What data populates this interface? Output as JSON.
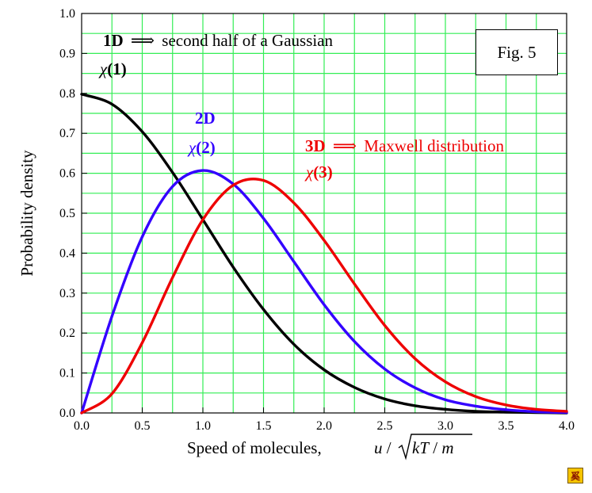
{
  "chart_data": {
    "type": "line",
    "xlabel": "Speed of molecules,",
    "xlim": [
      0,
      4
    ],
    "ylim": [
      0,
      1
    ],
    "grid": true,
    "xticks": [
      "0.0",
      "0.5",
      "1.0",
      "1.5",
      "2.0",
      "2.5",
      "3.0",
      "3.5",
      "4.0"
    ],
    "yticks": [
      "0.0",
      "0.1",
      "0.2",
      "0.3",
      "0.4",
      "0.5",
      "0.6",
      "0.7",
      "0.8",
      "0.9",
      "1.0"
    ],
    "series": [
      {
        "name": "χ(1)",
        "color": "#000000",
        "x": [
          0,
          0.25,
          0.5,
          0.75,
          1.0,
          1.25,
          1.5,
          1.75,
          2.0,
          2.25,
          2.5,
          2.75,
          3.0,
          3.25,
          3.5,
          3.75,
          4.0
        ],
        "y": [
          0.798,
          0.773,
          0.704,
          0.602,
          0.484,
          0.365,
          0.259,
          0.172,
          0.108,
          0.064,
          0.035,
          0.018,
          0.009,
          0.004,
          0.002,
          0.001,
          0.0
        ]
      },
      {
        "name": "χ(2)",
        "color": "#3300ff",
        "x": [
          0,
          0.25,
          0.5,
          0.75,
          1.0,
          1.25,
          1.5,
          1.75,
          2.0,
          2.25,
          2.5,
          2.75,
          3.0,
          3.25,
          3.5,
          3.75,
          4.0
        ],
        "y": [
          0.0,
          0.242,
          0.441,
          0.567,
          0.607,
          0.573,
          0.487,
          0.379,
          0.271,
          0.179,
          0.11,
          0.063,
          0.033,
          0.017,
          0.008,
          0.003,
          0.001
        ]
      },
      {
        "name": "χ(3)",
        "color": "#ee0000",
        "x": [
          0,
          0.25,
          0.5,
          0.75,
          1.0,
          1.25,
          1.5,
          1.75,
          2.0,
          2.25,
          2.5,
          2.75,
          3.0,
          3.25,
          3.5,
          3.75,
          4.0
        ],
        "y": [
          0.0,
          0.048,
          0.176,
          0.339,
          0.484,
          0.57,
          0.582,
          0.526,
          0.432,
          0.323,
          0.219,
          0.136,
          0.078,
          0.041,
          0.02,
          0.009,
          0.004
        ]
      }
    ]
  },
  "annotations": {
    "a1_prefix": "1D",
    "a1_arrow": "⟹",
    "a1_text": "second half of a Gaussian",
    "a1_chi": "χ",
    "a1_chi_suffix": "(1)",
    "a2_prefix": "2D",
    "a2_chi": "χ",
    "a2_chi_suffix": "(2)",
    "a3_prefix": "3D",
    "a3_arrow": "⟹",
    "a3_text": "Maxwell distribution",
    "a3_chi": "χ",
    "a3_chi_suffix": "(3)"
  },
  "ylabel": "Probability density",
  "xlabel_formula": {
    "u": "u",
    "slash1": " / ",
    "kt": "kT",
    "slash2": " / ",
    "m": "m"
  },
  "fig_label": "Fig. 5",
  "logo_glyph": "奚",
  "colors": {
    "grid": "#33ee55",
    "black": "#000000",
    "blue": "#3300ff",
    "red": "#ee0000"
  }
}
